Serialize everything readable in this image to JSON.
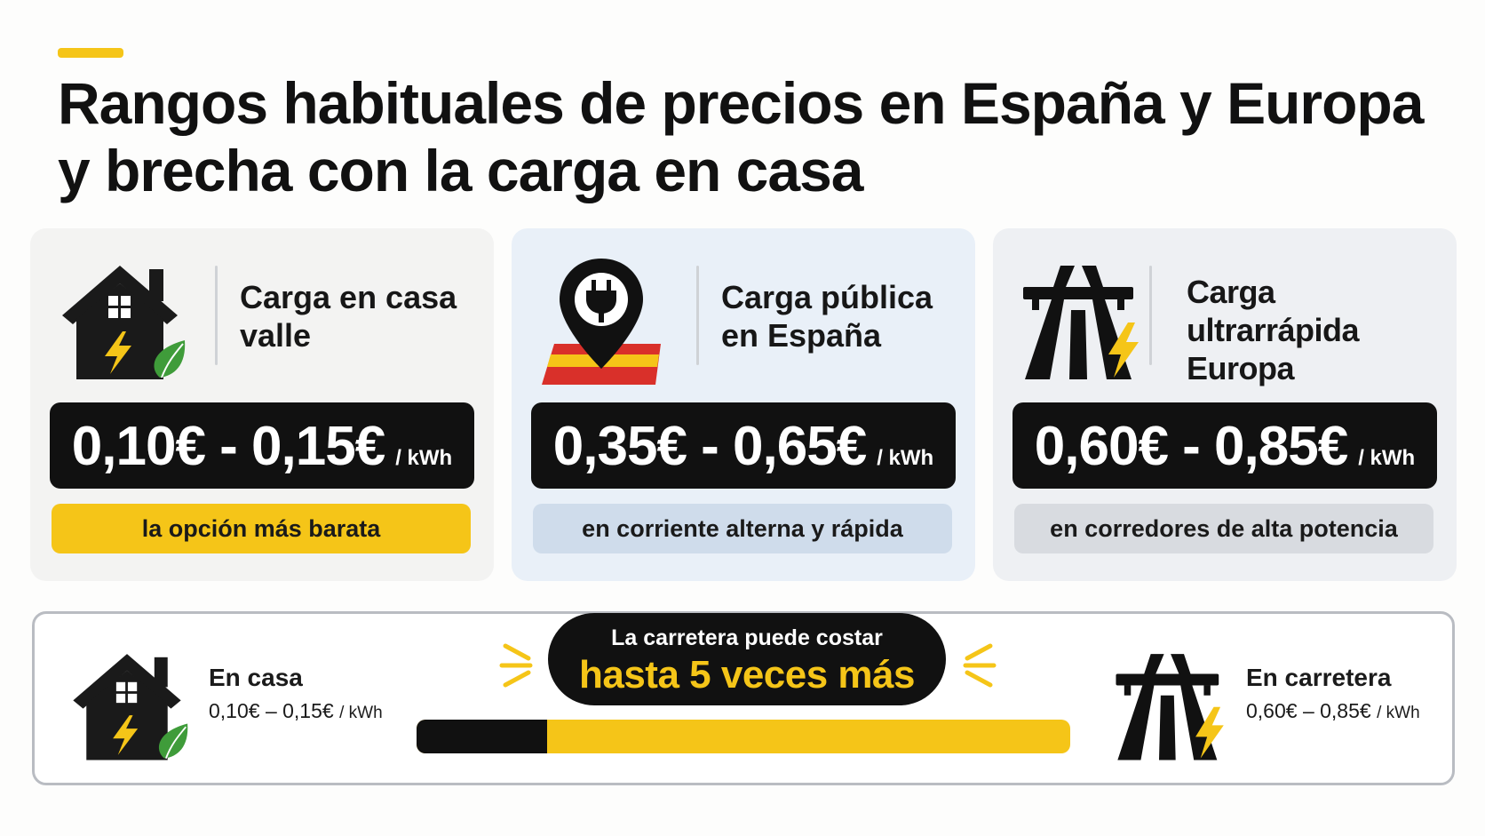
{
  "title": "Rangos habituales de precios en España y Europa y brecha con la carga en casa",
  "colors": {
    "accent": "#f5c518",
    "dark": "#111111"
  },
  "cards": [
    {
      "icon": "house-bolt-leaf-icon",
      "label": "Carga en casa valle",
      "price": "0,10€ - 0,15€",
      "unit": "/ kWh",
      "tag": "la opción más barata"
    },
    {
      "icon": "map-pin-plug-spain-flag-icon",
      "label": "Carga pública en España",
      "price": "0,35€ - 0,65€",
      "unit": "/ kWh",
      "tag": "en corriente alterna y rápida"
    },
    {
      "icon": "highway-bolt-icon",
      "label": "Carga ultrarrápida Europa",
      "price": "0,60€ - 0,85€",
      "unit": "/ kWh",
      "tag": "en corredores de alta potencia"
    }
  ],
  "comparison": {
    "home": {
      "title": "En casa",
      "price": "0,10€ – 0,15€",
      "unit": "/ kWh"
    },
    "road": {
      "title": "En carretera",
      "price": "0,60€ – 0,85€",
      "unit": "/ kWh"
    },
    "bubble_line1": "La carretera puede costar",
    "bubble_line2": "hasta 5 veces más",
    "bar_home_fraction": 0.2
  }
}
